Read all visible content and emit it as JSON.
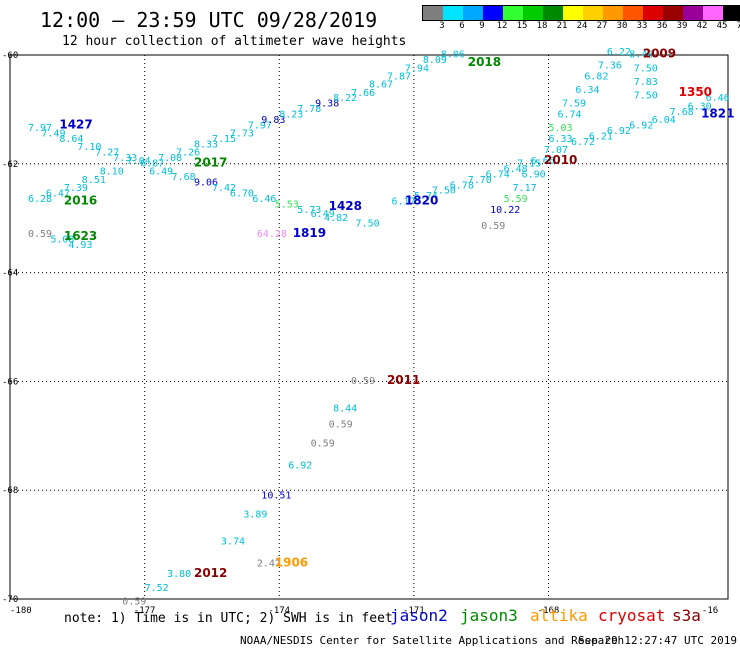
{
  "header": {
    "title": "12:00 — 23:59 UTC 09/28/2019",
    "subtitle": "12 hour collection of altimeter wave heights"
  },
  "legend": {
    "unit": "(ft)",
    "labels": [
      "3",
      "6",
      "9",
      "12",
      "15",
      "18",
      "21",
      "24",
      "27",
      "30",
      "33",
      "36",
      "39",
      "42",
      "45",
      "70"
    ],
    "colors": [
      "#7f7f7f",
      "#00e5ff",
      "#00a8ff",
      "#0000ff",
      "#33ff33",
      "#00cc00",
      "#008800",
      "#ffff00",
      "#ffd000",
      "#ff9900",
      "#ff5500",
      "#dd0000",
      "#990000",
      "#990099",
      "#ff66ff",
      "#000000"
    ]
  },
  "axes": {
    "lat_labels": [
      "-60",
      "-62",
      "-64",
      "-66",
      "-68",
      "-70"
    ],
    "lon_labels": [
      "-180",
      "-177",
      "-174",
      "-171",
      "-168",
      "-16"
    ]
  },
  "points": [
    {
      "t": "7.97",
      "c": "#00bfd8",
      "lon": -179.6,
      "lat": -61.4
    },
    {
      "t": "7.49",
      "c": "#00bfd8",
      "lon": -179.3,
      "lat": -61.5
    },
    {
      "t": "8.64",
      "c": "#00bfd8",
      "lon": -178.9,
      "lat": -61.6
    },
    {
      "t": "7.10",
      "c": "#00bfd8",
      "lon": -178.5,
      "lat": -61.75
    },
    {
      "t": "7.27",
      "c": "#00bfd8",
      "lon": -178.1,
      "lat": -61.85
    },
    {
      "t": "7.33",
      "c": "#00bfd8",
      "lon": -177.7,
      "lat": -61.95
    },
    {
      "t": "7.04",
      "c": "#00bfd8",
      "lon": -177.4,
      "lat": -62.0
    },
    {
      "t": "6.87",
      "c": "#00bfd8",
      "lon": -177.1,
      "lat": -62.05
    },
    {
      "t": "7.08",
      "c": "#00bfd8",
      "lon": -176.7,
      "lat": -61.95
    },
    {
      "t": "7.26",
      "c": "#00bfd8",
      "lon": -176.3,
      "lat": -61.85
    },
    {
      "t": "8.33",
      "c": "#00bfd8",
      "lon": -175.9,
      "lat": -61.7
    },
    {
      "t": "7.15",
      "c": "#00bfd8",
      "lon": -175.5,
      "lat": -61.6
    },
    {
      "t": "7.73",
      "c": "#00bfd8",
      "lon": -175.1,
      "lat": -61.5
    },
    {
      "t": "7.97",
      "c": "#00bfd8",
      "lon": -174.7,
      "lat": -61.35
    },
    {
      "t": "9.83",
      "c": "#0000cc",
      "lon": -174.4,
      "lat": -61.25
    },
    {
      "t": "8.23",
      "c": "#00bfd8",
      "lon": -174.0,
      "lat": -61.15
    },
    {
      "t": "7.78",
      "c": "#00bfd8",
      "lon": -173.6,
      "lat": -61.05
    },
    {
      "t": "9.38",
      "c": "#0000cc",
      "lon": -173.2,
      "lat": -60.95
    },
    {
      "t": "8.22",
      "c": "#00bfd8",
      "lon": -172.8,
      "lat": -60.85
    },
    {
      "t": "7.66",
      "c": "#00bfd8",
      "lon": -172.4,
      "lat": -60.75
    },
    {
      "t": "8.67",
      "c": "#00bfd8",
      "lon": -172.0,
      "lat": -60.6
    },
    {
      "t": "7.87",
      "c": "#00bfd8",
      "lon": -171.6,
      "lat": -60.45
    },
    {
      "t": "7.94",
      "c": "#00bfd8",
      "lon": -171.2,
      "lat": -60.3
    },
    {
      "t": "8.09",
      "c": "#00bfd8",
      "lon": -170.8,
      "lat": -60.15
    },
    {
      "t": "8.06",
      "c": "#00bfd8",
      "lon": -170.4,
      "lat": -60.05
    },
    {
      "t": "6.28",
      "c": "#00bfd8",
      "lon": -179.6,
      "lat": -62.7
    },
    {
      "t": "6.47",
      "c": "#00bfd8",
      "lon": -179.2,
      "lat": -62.6
    },
    {
      "t": "7.39",
      "c": "#00bfd8",
      "lon": -178.8,
      "lat": -62.5
    },
    {
      "t": "8.51",
      "c": "#00bfd8",
      "lon": -178.4,
      "lat": -62.35
    },
    {
      "t": "8.10",
      "c": "#00bfd8",
      "lon": -178.0,
      "lat": -62.2
    },
    {
      "t": "6.49",
      "c": "#00bfd8",
      "lon": -176.9,
      "lat": -62.2
    },
    {
      "t": "7.68",
      "c": "#00bfd8",
      "lon": -176.4,
      "lat": -62.3
    },
    {
      "t": "9.06",
      "c": "#0000cc",
      "lon": -175.9,
      "lat": -62.4
    },
    {
      "t": "7.42",
      "c": "#00bfd8",
      "lon": -175.5,
      "lat": -62.5
    },
    {
      "t": "6.70",
      "c": "#00bfd8",
      "lon": -175.1,
      "lat": -62.6
    },
    {
      "t": "6.46",
      "c": "#00bfd8",
      "lon": -174.6,
      "lat": -62.7
    },
    {
      "t": "5.53",
      "c": "#33dd55",
      "lon": -174.1,
      "lat": -62.8
    },
    {
      "t": "5.73",
      "c": "#00bfd8",
      "lon": -173.6,
      "lat": -62.9
    },
    {
      "t": "6.49",
      "c": "#00bfd8",
      "lon": -173.3,
      "lat": -62.98
    },
    {
      "t": "4.82",
      "c": "#00bfd8",
      "lon": -173.0,
      "lat": -63.05
    },
    {
      "t": "7.50",
      "c": "#00bfd8",
      "lon": -172.3,
      "lat": -63.15
    },
    {
      "t": "64.28",
      "c": "#ee88ee",
      "lon": -174.5,
      "lat": -63.35
    },
    {
      "t": "0.59",
      "c": "#7f7f7f",
      "lon": -179.6,
      "lat": -63.35
    },
    {
      "t": "5.08",
      "c": "#00bfd8",
      "lon": -179.1,
      "lat": -63.45
    },
    {
      "t": "4.93",
      "c": "#00bfd8",
      "lon": -178.7,
      "lat": -63.55
    },
    {
      "t": "6.17",
      "c": "#00bfd8",
      "lon": -171.5,
      "lat": -62.75
    },
    {
      "t": "5.74",
      "c": "#00bfd8",
      "lon": -171.0,
      "lat": -62.65
    },
    {
      "t": "7.50",
      "c": "#00bfd8",
      "lon": -170.6,
      "lat": -62.55
    },
    {
      "t": "6.78",
      "c": "#00bfd8",
      "lon": -170.2,
      "lat": -62.45
    },
    {
      "t": "7.70",
      "c": "#00bfd8",
      "lon": -169.8,
      "lat": -62.35
    },
    {
      "t": "6.74",
      "c": "#00bfd8",
      "lon": -169.4,
      "lat": -62.25
    },
    {
      "t": "6.48",
      "c": "#00bfd8",
      "lon": -169.0,
      "lat": -62.15
    },
    {
      "t": "7.15",
      "c": "#00bfd8",
      "lon": -168.7,
      "lat": -62.05
    },
    {
      "t": "6.90",
      "c": "#00bfd8",
      "lon": -168.6,
      "lat": -62.25
    },
    {
      "t": "7.17",
      "c": "#00bfd8",
      "lon": -168.8,
      "lat": -62.5
    },
    {
      "t": "5.59",
      "c": "#33dd55",
      "lon": -169.0,
      "lat": -62.7
    },
    {
      "t": "10.22",
      "c": "#0000cc",
      "lon": -169.3,
      "lat": -62.9
    },
    {
      "t": "0.59",
      "c": "#7f7f7f",
      "lon": -169.5,
      "lat": -63.2
    },
    {
      "t": "6.66",
      "c": "#00bfd8",
      "lon": -168.4,
      "lat": -62.0
    },
    {
      "t": "7.07",
      "c": "#00bfd8",
      "lon": -168.1,
      "lat": -61.8
    },
    {
      "t": "6.33",
      "c": "#00bfd8",
      "lon": -168.0,
      "lat": -61.6
    },
    {
      "t": "5.03",
      "c": "#33dd55",
      "lon": -168.0,
      "lat": -61.4
    },
    {
      "t": "6.74",
      "c": "#00bfd8",
      "lon": -167.8,
      "lat": -61.15
    },
    {
      "t": "7.59",
      "c": "#00bfd8",
      "lon": -167.7,
      "lat": -60.95
    },
    {
      "t": "6.34",
      "c": "#00bfd8",
      "lon": -167.4,
      "lat": -60.7
    },
    {
      "t": "6.82",
      "c": "#00bfd8",
      "lon": -167.2,
      "lat": -60.45
    },
    {
      "t": "7.36",
      "c": "#00bfd8",
      "lon": -166.9,
      "lat": -60.25
    },
    {
      "t": "6.22",
      "c": "#00bfd8",
      "lon": -166.7,
      "lat": -60.0
    },
    {
      "t": "8.46",
      "c": "#00bfd8",
      "lon": -166.2,
      "lat": -60.05
    },
    {
      "t": "7.50",
      "c": "#00bfd8",
      "lon": -166.1,
      "lat": -60.3
    },
    {
      "t": "7.83",
      "c": "#00bfd8",
      "lon": -166.1,
      "lat": -60.55
    },
    {
      "t": "7.50",
      "c": "#00bfd8",
      "lon": -166.1,
      "lat": -60.8
    },
    {
      "t": "6.72",
      "c": "#00bfd8",
      "lon": -167.5,
      "lat": -61.65
    },
    {
      "t": "6.21",
      "c": "#00bfd8",
      "lon": -167.1,
      "lat": -61.55
    },
    {
      "t": "6.92",
      "c": "#00bfd8",
      "lon": -166.7,
      "lat": -61.45
    },
    {
      "t": "6.92",
      "c": "#00bfd8",
      "lon": -166.2,
      "lat": -61.35
    },
    {
      "t": "6.04",
      "c": "#00bfd8",
      "lon": -165.7,
      "lat": -61.25
    },
    {
      "t": "7.68",
      "c": "#00bfd8",
      "lon": -165.3,
      "lat": -61.1
    },
    {
      "t": "6.30",
      "c": "#00bfd8",
      "lon": -164.9,
      "lat": -61.0
    },
    {
      "t": "6.46",
      "c": "#00bfd8",
      "lon": -164.5,
      "lat": -60.85
    },
    {
      "t": "0.59",
      "c": "#7f7f7f",
      "lon": -172.4,
      "lat": -66.05
    },
    {
      "t": "8.44",
      "c": "#00bfd8",
      "lon": -172.8,
      "lat": -66.55
    },
    {
      "t": "0.59",
      "c": "#7f7f7f",
      "lon": -172.9,
      "lat": -66.85
    },
    {
      "t": "0.59",
      "c": "#7f7f7f",
      "lon": -173.3,
      "lat": -67.2
    },
    {
      "t": "6.92",
      "c": "#00bfd8",
      "lon": -173.8,
      "lat": -67.6
    },
    {
      "t": "10.51",
      "c": "#0000cc",
      "lon": -174.4,
      "lat": -68.15
    },
    {
      "t": "3.89",
      "c": "#00bfd8",
      "lon": -174.8,
      "lat": -68.5
    },
    {
      "t": "3.74",
      "c": "#00bfd8",
      "lon": -175.3,
      "lat": -69.0
    },
    {
      "t": "2.42",
      "c": "#7f7f7f",
      "lon": -174.5,
      "lat": -69.4
    },
    {
      "t": "3.80",
      "c": "#00bfd8",
      "lon": -176.5,
      "lat": -69.6
    },
    {
      "t": "7.52",
      "c": "#00bfd8",
      "lon": -177.0,
      "lat": -69.85
    },
    {
      "t": "0.59",
      "c": "#7f7f7f",
      "lon": -177.5,
      "lat": -70.1
    }
  ],
  "tracks": [
    {
      "t": "1427",
      "c": "#0000cc",
      "lon": -178.9,
      "lat": -61.35
    },
    {
      "t": "2017",
      "c": "#008800",
      "lon": -175.9,
      "lat": -62.05
    },
    {
      "t": "2016",
      "c": "#008800",
      "lon": -178.8,
      "lat": -62.75
    },
    {
      "t": "1623",
      "c": "#008800",
      "lon": -178.8,
      "lat": -63.4
    },
    {
      "t": "1819",
      "c": "#0000cc",
      "lon": -173.7,
      "lat": -63.35
    },
    {
      "t": "1428",
      "c": "#0000cc",
      "lon": -172.9,
      "lat": -62.85
    },
    {
      "t": "1820",
      "c": "#0000cc",
      "lon": -171.2,
      "lat": -62.75
    },
    {
      "t": "2018",
      "c": "#008800",
      "lon": -169.8,
      "lat": -60.2
    },
    {
      "t": "2009",
      "c": "#880000",
      "lon": -165.9,
      "lat": -60.05
    },
    {
      "t": "1350",
      "c": "#dd0000",
      "lon": -165.1,
      "lat": -60.75
    },
    {
      "t": "1821",
      "c": "#0000cc",
      "lon": -164.6,
      "lat": -61.15
    },
    {
      "t": "2010",
      "c": "#880000",
      "lon": -168.1,
      "lat": -62.0
    },
    {
      "t": "2011",
      "c": "#880000",
      "lon": -171.6,
      "lat": -66.05
    },
    {
      "t": "1906",
      "c": "#ff9900",
      "lon": -174.1,
      "lat": -69.4
    },
    {
      "t": "2012",
      "c": "#880000",
      "lon": -175.9,
      "lat": -69.6
    }
  ],
  "footer": {
    "note": "note: 1) Time is in UTC; 2) SWH is in feet",
    "satellites": [
      {
        "name": "jason2",
        "color": "#0000cc"
      },
      {
        "name": "jason3",
        "color": "#008800"
      },
      {
        "name": "altika",
        "color": "#ff9900"
      },
      {
        "name": "cryosat",
        "color": "#dd0000"
      },
      {
        "name": "s3a",
        "color": "#880000"
      }
    ],
    "credit": "NOAA/NESDIS Center for Satellite Applications and Research",
    "timestamp": "Sep 29 12:27:47 UTC 2019"
  }
}
